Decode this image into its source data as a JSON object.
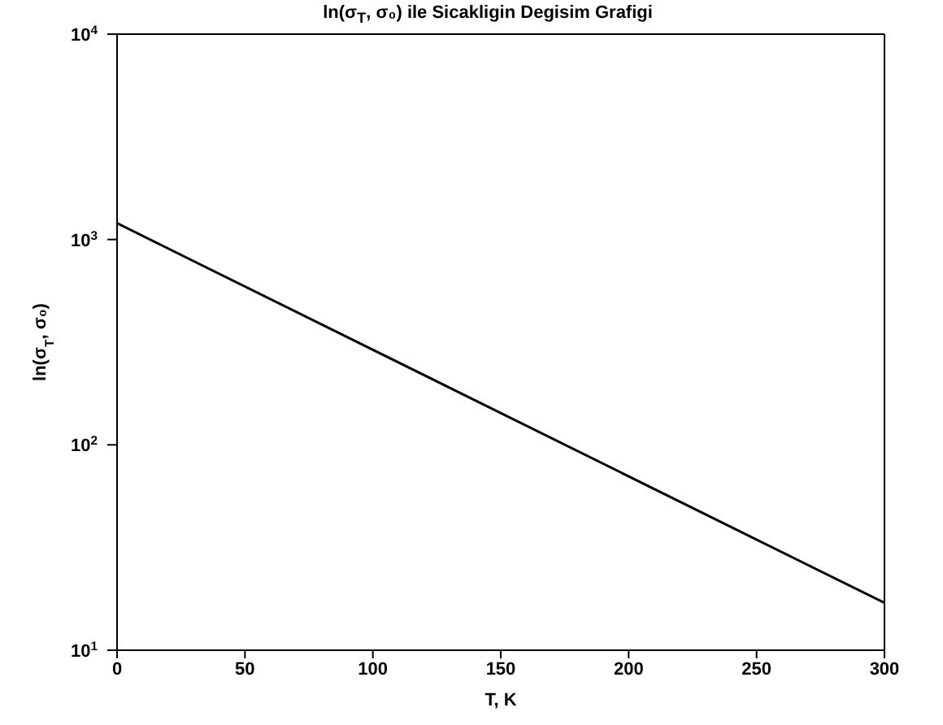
{
  "chart_data": {
    "type": "line",
    "title": "ln(σ$_{T}$, σ₀) ile Sicakligin Degisim Grafigi",
    "xlabel": "T, K",
    "ylabel": "ln(σ$_{T}$, σ₀)",
    "x": [
      0,
      300
    ],
    "series": [
      {
        "color": "#000000",
        "values": [
          1200,
          17
        ]
      }
    ],
    "xlim": [
      0,
      300
    ],
    "xticks": [
      0,
      50,
      100,
      150,
      200,
      250,
      300
    ],
    "ylim": [
      10,
      10000
    ],
    "yticks": [
      {
        "value": 10,
        "label": "10$^{1}$"
      },
      {
        "value": 100,
        "label": "10$^{2}$"
      },
      {
        "value": 1000,
        "label": "10$^{3}$"
      },
      {
        "value": 10000,
        "label": "10$^{4}$"
      }
    ],
    "log": true,
    "grid": false,
    "legend": false,
    "marker": "none",
    "line_style": "solid"
  }
}
